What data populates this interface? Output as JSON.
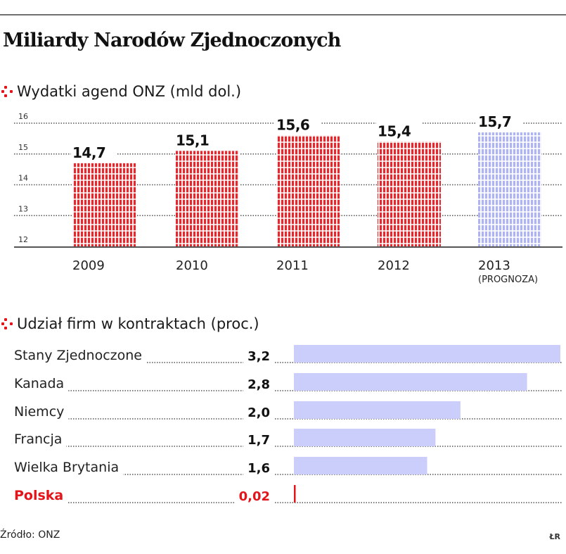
{
  "title": "Miliardy Narodów Zjednoczonych",
  "source": "Źródło: ONZ",
  "credit": "ŁR",
  "colors": {
    "accent_red": "#e3151a",
    "forecast_blue": "#b9bdf5",
    "hbar_blue": "#cbcdfa",
    "grid": "#555555"
  },
  "chart_data": [
    {
      "type": "bar",
      "title": "Wydatki agend ONZ (mld dol.)",
      "categories": [
        "2009",
        "2010",
        "2011",
        "2012",
        "2013"
      ],
      "category_sublabels": [
        "",
        "",
        "",
        "",
        "(PROGNOZA)"
      ],
      "values": [
        14.7,
        15.1,
        15.6,
        15.4,
        15.7
      ],
      "value_labels": [
        "14,7",
        "15,1",
        "15,6",
        "15,4",
        "15,7"
      ],
      "forecast": [
        false,
        false,
        false,
        false,
        true
      ],
      "ylim": [
        12,
        16
      ],
      "yticks": [
        12,
        13,
        14,
        15,
        16
      ],
      "ytick_labels": [
        "12",
        "13",
        "14",
        "15",
        "16"
      ],
      "grid": true,
      "xlabel": "",
      "ylabel": ""
    },
    {
      "type": "bar",
      "orientation": "horizontal",
      "title": "Udział firm w kontraktach (proc.)",
      "categories": [
        "Stany Zjednoczone",
        "Kanada",
        "Niemcy",
        "Francja",
        "Wielka Brytania",
        "Polska"
      ],
      "values": [
        3.2,
        2.8,
        2.0,
        1.7,
        1.6,
        0.02
      ],
      "value_labels": [
        "3,2",
        "2,8",
        "2,0",
        "1,7",
        "1,6",
        "0,02"
      ],
      "highlight": [
        false,
        false,
        false,
        false,
        false,
        true
      ],
      "xlim": [
        0,
        3.2
      ]
    }
  ]
}
